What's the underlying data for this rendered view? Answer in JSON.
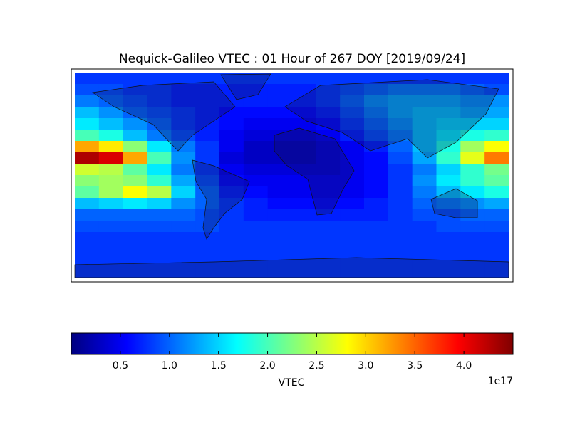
{
  "chart_data": {
    "type": "heatmap",
    "colormap": "jet",
    "title": "Nequick-Galileo VTEC : 01 Hour of 267 DOY [2019/09/24]",
    "xlim": [
      -180,
      180
    ],
    "ylim": [
      90,
      -90
    ],
    "values": [
      [
        0.8,
        0.8,
        0.8,
        0.8,
        0.8,
        0.8,
        0.8,
        0.8,
        0.8,
        0.8,
        0.8,
        0.8,
        0.8,
        0.8,
        0.8,
        0.8,
        0.8,
        0.8
      ],
      [
        0.9,
        0.9,
        0.8,
        0.8,
        0.7,
        0.7,
        0.7,
        0.7,
        0.7,
        0.7,
        0.8,
        0.9,
        1.0,
        1.1,
        1.1,
        1.1,
        1.0,
        0.9
      ],
      [
        1.1,
        1.0,
        0.9,
        0.8,
        0.7,
        0.7,
        0.7,
        0.7,
        0.7,
        0.7,
        0.8,
        1.0,
        1.2,
        1.3,
        1.3,
        1.3,
        1.2,
        1.2
      ],
      [
        1.4,
        1.2,
        1.0,
        0.9,
        0.8,
        0.7,
        0.6,
        0.6,
        0.6,
        0.6,
        0.7,
        0.9,
        1.1,
        1.3,
        1.4,
        1.4,
        1.3,
        1.3
      ],
      [
        1.6,
        1.4,
        1.2,
        1.0,
        0.8,
        0.7,
        0.6,
        0.5,
        0.5,
        0.5,
        0.6,
        0.8,
        1.0,
        1.2,
        1.4,
        1.5,
        1.5,
        1.5
      ],
      [
        2.0,
        1.8,
        1.4,
        1.1,
        0.9,
        0.7,
        0.5,
        0.4,
        0.4,
        0.4,
        0.5,
        0.7,
        0.9,
        1.1,
        1.4,
        1.6,
        1.8,
        1.9
      ],
      [
        3.2,
        2.9,
        2.3,
        1.6,
        1.1,
        0.8,
        0.5,
        0.3,
        0.3,
        0.3,
        0.4,
        0.5,
        0.7,
        1.0,
        1.4,
        1.8,
        2.4,
        2.8
      ],
      [
        4.3,
        4.1,
        3.2,
        2.0,
        1.2,
        0.8,
        0.4,
        0.3,
        0.3,
        0.3,
        0.4,
        0.5,
        0.6,
        0.9,
        1.3,
        1.9,
        2.7,
        3.4
      ],
      [
        2.6,
        2.5,
        2.1,
        1.6,
        1.1,
        0.8,
        0.5,
        0.4,
        0.4,
        0.4,
        0.4,
        0.5,
        0.6,
        0.8,
        1.1,
        1.5,
        1.9,
        2.2
      ],
      [
        2.3,
        2.4,
        2.3,
        1.9,
        1.3,
        0.9,
        0.6,
        0.5,
        0.5,
        0.5,
        0.5,
        0.5,
        0.6,
        0.8,
        1.2,
        1.6,
        1.9,
        2.1
      ],
      [
        2.1,
        2.4,
        2.8,
        2.5,
        1.5,
        1.0,
        0.7,
        0.6,
        0.5,
        0.5,
        0.5,
        0.5,
        0.6,
        0.8,
        1.1,
        1.4,
        1.6,
        1.8
      ],
      [
        1.4,
        1.5,
        1.6,
        1.5,
        1.2,
        1.0,
        0.8,
        0.7,
        0.6,
        0.6,
        0.6,
        0.6,
        0.7,
        0.8,
        1.0,
        1.1,
        1.2,
        1.3
      ],
      [
        1.0,
        1.0,
        1.0,
        1.0,
        1.0,
        0.9,
        0.8,
        0.7,
        0.7,
        0.7,
        0.7,
        0.7,
        0.7,
        0.8,
        0.9,
        0.9,
        1.0,
        1.0
      ],
      [
        0.9,
        0.9,
        0.9,
        0.9,
        0.9,
        0.9,
        0.8,
        0.8,
        0.8,
        0.8,
        0.8,
        0.8,
        0.8,
        0.8,
        0.8,
        0.9,
        0.9,
        0.9
      ],
      [
        0.8,
        0.8,
        0.8,
        0.8,
        0.8,
        0.8,
        0.8,
        0.8,
        0.8,
        0.8,
        0.8,
        0.8,
        0.8,
        0.8,
        0.8,
        0.8,
        0.8,
        0.8
      ],
      [
        0.8,
        0.8,
        0.8,
        0.8,
        0.8,
        0.8,
        0.8,
        0.8,
        0.8,
        0.8,
        0.8,
        0.8,
        0.8,
        0.8,
        0.8,
        0.8,
        0.8,
        0.8
      ],
      [
        0.8,
        0.8,
        0.8,
        0.8,
        0.8,
        0.8,
        0.8,
        0.8,
        0.8,
        0.8,
        0.8,
        0.8,
        0.8,
        0.8,
        0.8,
        0.8,
        0.8,
        0.8
      ],
      [
        0.8,
        0.8,
        0.8,
        0.8,
        0.8,
        0.8,
        0.8,
        0.8,
        0.8,
        0.8,
        0.8,
        0.8,
        0.8,
        0.8,
        0.8,
        0.8,
        0.8,
        0.8
      ]
    ],
    "colorbar": {
      "label": "VTEC",
      "offset_label": "1e17",
      "clim": [
        0,
        4.5
      ],
      "ticks": [
        0.5,
        {
          "value": 1,
          "label": "1.0"
        },
        1.5,
        {
          "value": 2,
          "label": "2.0"
        },
        2.5,
        {
          "value": 3,
          "label": "3.0"
        },
        3.5,
        {
          "value": 4,
          "label": "4.0"
        }
      ]
    }
  }
}
